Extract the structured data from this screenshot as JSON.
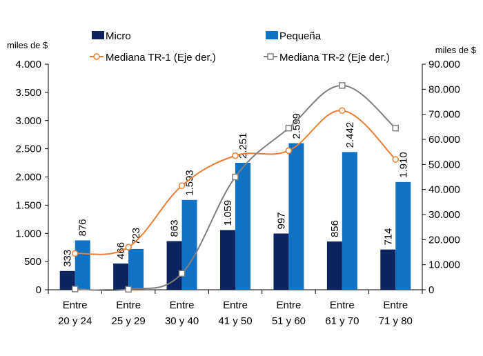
{
  "chart_data": {
    "type": "bar",
    "categories": [
      [
        "Entre",
        "20 y 24"
      ],
      [
        "Entre",
        "25 y 29"
      ],
      [
        "Entre",
        "30 y 40"
      ],
      [
        "Entre",
        "41 y 50"
      ],
      [
        "Entre",
        "51 y 60"
      ],
      [
        "Entre",
        "61 y 70"
      ],
      [
        "Entre",
        "71 y 80"
      ]
    ],
    "series": [
      {
        "name": "Micro",
        "kind": "bar",
        "axis": "left",
        "color": "#0d2461",
        "values": [
          333,
          466,
          863,
          1059,
          997,
          856,
          714
        ],
        "labels": [
          "333",
          "466",
          "863",
          "1.059",
          "997",
          "856",
          "714"
        ]
      },
      {
        "name": "Pequeña",
        "kind": "bar",
        "axis": "left",
        "color": "#0f72c4",
        "values": [
          876,
          723,
          1593,
          2251,
          2599,
          2442,
          1910
        ],
        "labels": [
          "876",
          "723",
          "1.593",
          "2.251",
          "2.599",
          "2.442",
          "1.910"
        ]
      },
      {
        "name": "Mediana TR-1 (Eje der.)",
        "kind": "line",
        "axis": "right",
        "color": "#e87d33",
        "marker": "circle",
        "values": [
          14500,
          17000,
          41500,
          53500,
          55500,
          71500,
          52000
        ]
      },
      {
        "name": "Mediana TR-2 (Eje der.)",
        "kind": "line",
        "axis": "right",
        "color": "#7f7f7f",
        "marker": "square",
        "values": [
          300,
          200,
          6500,
          45000,
          64500,
          81500,
          64500
        ]
      }
    ],
    "y_left": {
      "label": "miles de $",
      "min": 0,
      "max": 4000,
      "ticks": [
        0,
        500,
        1000,
        1500,
        2000,
        2500,
        3000,
        3500,
        4000
      ],
      "tick_labels": [
        "0",
        "500",
        "1.000",
        "1.500",
        "2.000",
        "2.500",
        "3.000",
        "3.500",
        "4.000"
      ]
    },
    "y_right": {
      "label": "miles de $",
      "min": 0,
      "max": 90000,
      "ticks": [
        0,
        10000,
        20000,
        30000,
        40000,
        50000,
        60000,
        70000,
        80000,
        90000
      ],
      "tick_labels": [
        "0",
        "10.000",
        "20.000",
        "30.000",
        "40.000",
        "50.000",
        "60.000",
        "70.000",
        "80.000",
        "90.000"
      ]
    },
    "legend_position": "top"
  }
}
